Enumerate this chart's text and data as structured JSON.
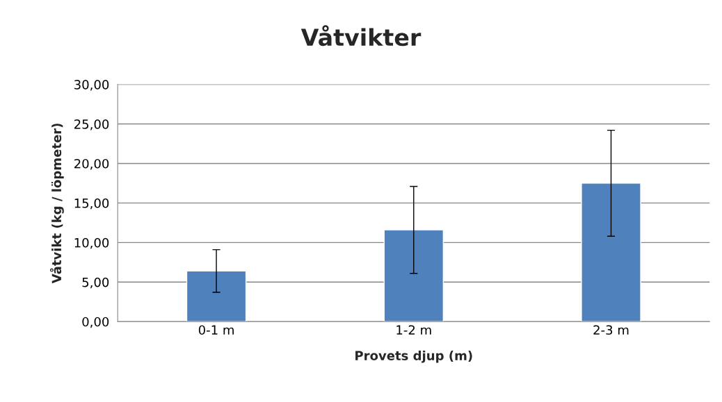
{
  "chart_data": {
    "type": "bar",
    "title": "Våtvikter",
    "xlabel": "Provets djup (m)",
    "ylabel": "Våtvikt (kg / löpmeter)",
    "categories": [
      "0-1 m",
      "1-2 m",
      "2-3 m"
    ],
    "values": [
      6.4,
      11.6,
      17.5
    ],
    "errors": [
      2.7,
      5.5,
      6.7
    ],
    "color": "#4f81bd",
    "ylim": [
      0,
      30
    ],
    "yticks": [
      {
        "value": 0,
        "label": "0,00"
      },
      {
        "value": 5,
        "label": "5,00"
      },
      {
        "value": 10,
        "label": "10,00"
      },
      {
        "value": 15,
        "label": "15,00"
      },
      {
        "value": 20,
        "label": "20,00"
      },
      {
        "value": 25,
        "label": "25,00"
      },
      {
        "value": 30,
        "label": "30,00"
      }
    ],
    "grid": "y",
    "legend": false
  }
}
